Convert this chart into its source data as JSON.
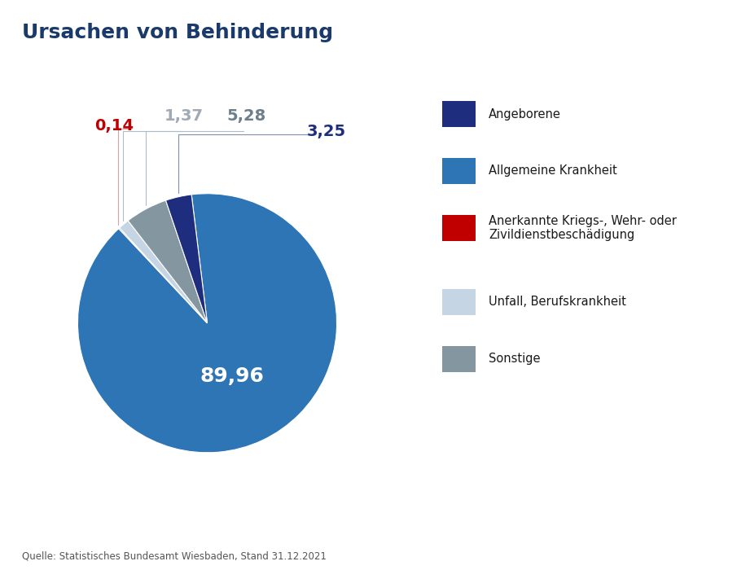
{
  "title": "Ursachen von Behinderung",
  "title_color": "#1a3a6b",
  "title_fontsize": 18,
  "slices": [
    {
      "label": "Allgemeine Krankheit",
      "value": 89.96,
      "color": "#2e75b6"
    },
    {
      "label": "Anerkannte Kriegs-",
      "value": 0.14,
      "color": "#c00000"
    },
    {
      "label": "Unfall, Berufskrankheit",
      "value": 1.37,
      "color": "#c5d5e4"
    },
    {
      "label": "Sonstige",
      "value": 5.28,
      "color": "#8496a0"
    },
    {
      "label": "Angeborene",
      "value": 3.25,
      "color": "#1e2d7d"
    }
  ],
  "source_text": "Quelle: Statistisches Bundesamt Wiesbaden, Stand 31.12.2021",
  "source_fontsize": 8.5,
  "legend_labels": [
    "Angeborene",
    "Allgemeine Krankheit",
    "Anerkannte Kriegs-, Wehr- oder\nZivildienstbeschädigung",
    "Unfall, Berufskrankheit",
    "Sonstige"
  ],
  "legend_colors": [
    "#1e2d7d",
    "#2e75b6",
    "#c00000",
    "#c5d5e4",
    "#8496a0"
  ],
  "annot_outside": [
    {
      "label": "3,25",
      "color": "#1e2d7d",
      "fontsize": 16
    },
    {
      "label": "89,96",
      "color": "#ffffff",
      "fontsize": 18
    },
    {
      "label": "0,14",
      "color": "#c00000",
      "fontsize": 16
    },
    {
      "label": "1,37",
      "color": "#a0aab5",
      "fontsize": 16
    },
    {
      "label": "5,28",
      "color": "#6e7f8a",
      "fontsize": 16
    }
  ]
}
